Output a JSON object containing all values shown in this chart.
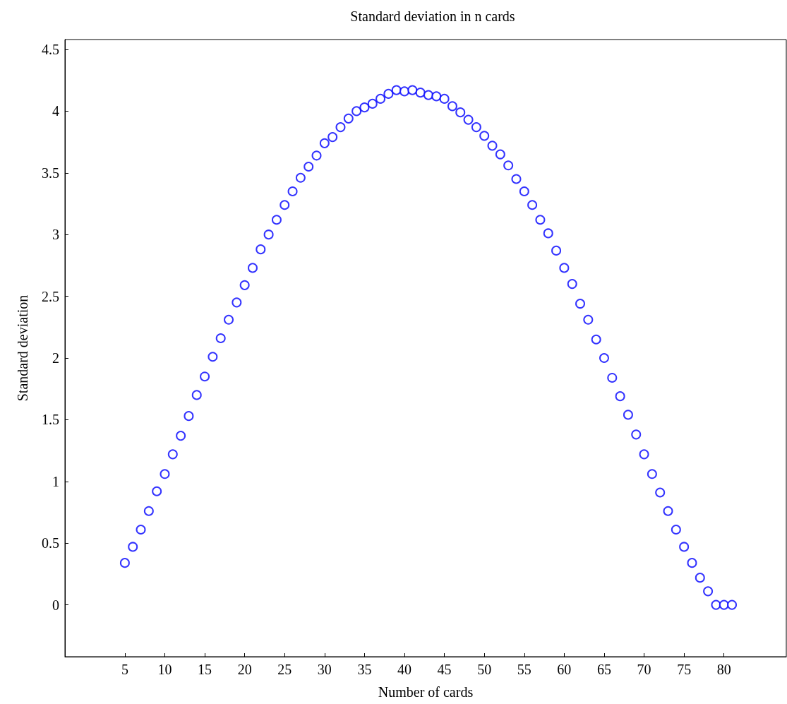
{
  "chart_data": {
    "type": "scatter",
    "title": "Standard deviation in n cards",
    "xlabel": "Number of cards",
    "ylabel": "Standard deviation",
    "x": [
      5,
      6,
      7,
      8,
      9,
      10,
      11,
      12,
      13,
      14,
      15,
      16,
      17,
      18,
      19,
      20,
      21,
      22,
      23,
      24,
      25,
      26,
      27,
      28,
      29,
      30,
      31,
      32,
      33,
      34,
      35,
      36,
      37,
      38,
      39,
      40,
      41,
      42,
      43,
      44,
      45,
      46,
      47,
      48,
      49,
      50,
      51,
      52,
      53,
      54,
      55,
      56,
      57,
      58,
      59,
      60,
      61,
      62,
      63,
      64,
      65,
      66,
      67,
      68,
      69,
      70,
      71,
      72,
      73,
      74,
      75,
      76,
      77,
      78,
      79,
      80,
      81
    ],
    "series": [
      {
        "color": "#0000ff",
        "values": [
          0.34,
          0.47,
          0.61,
          0.76,
          0.92,
          1.06,
          1.22,
          1.37,
          1.53,
          1.7,
          1.85,
          2.01,
          2.16,
          2.31,
          2.45,
          2.59,
          2.73,
          2.88,
          3.0,
          3.12,
          3.24,
          3.35,
          3.46,
          3.55,
          3.64,
          3.74,
          3.79,
          3.87,
          3.94,
          4.0,
          4.03,
          4.06,
          4.1,
          4.14,
          4.17,
          4.16,
          4.17,
          4.15,
          4.13,
          4.12,
          4.1,
          4.04,
          3.99,
          3.93,
          3.87,
          3.8,
          3.72,
          3.65,
          3.56,
          3.45,
          3.35,
          3.24,
          3.12,
          3.01,
          2.87,
          2.73,
          2.6,
          2.44,
          2.31,
          2.15,
          2.0,
          1.84,
          1.69,
          1.54,
          1.38,
          1.22,
          1.06,
          0.91,
          0.76,
          0.61,
          0.47,
          0.34,
          0.22,
          0.11,
          0,
          0,
          0
        ]
      }
    ],
    "xlim": [
      -2.5,
      87.8
    ],
    "xticks": [
      5,
      10,
      15,
      20,
      25,
      30,
      35,
      40,
      45,
      50,
      55,
      60,
      65,
      70,
      75,
      80
    ],
    "ylim": [
      -0.42,
      4.58
    ],
    "yticks": [
      0,
      0.5,
      1,
      1.5,
      2,
      2.5,
      3,
      3.5,
      4,
      4.5
    ],
    "grid": false,
    "marker": "circle"
  }
}
